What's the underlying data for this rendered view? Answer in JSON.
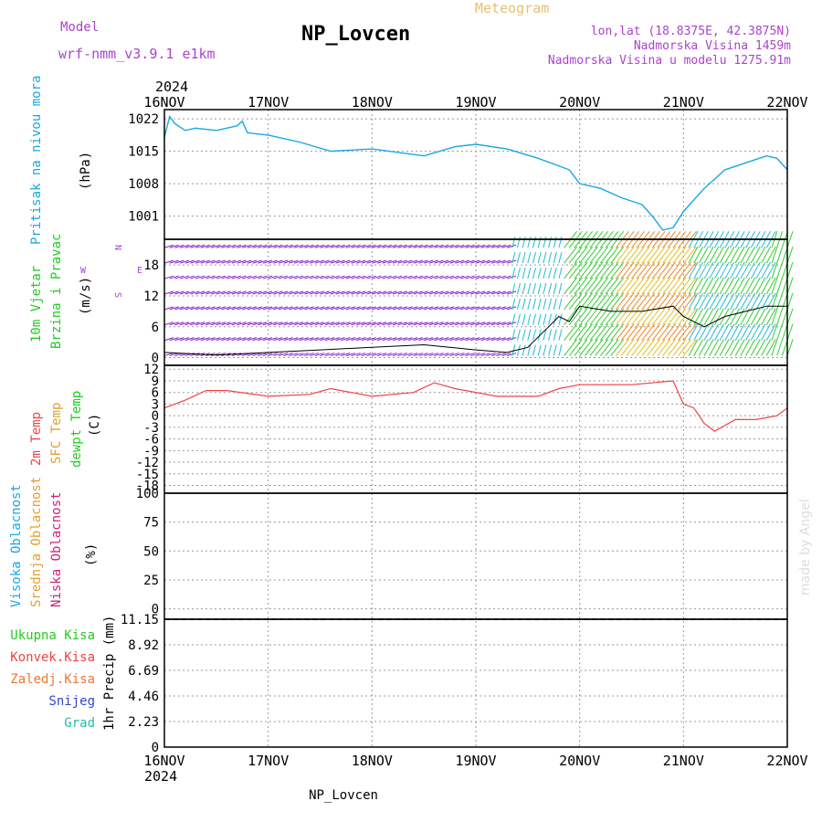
{
  "header": {
    "model_label": "Model",
    "model_value": "wrf-nmm_v3.9.1 e1km",
    "title": "NP_Lovcen",
    "subtitle": "Meteogram",
    "lonlat": "lon,lat (18.8375E, 42.3875N)",
    "elevation": "Nadmorska Visina 1459m",
    "model_elevation": "Nadmorska Visina u modelu 1275.91m",
    "year_top": "2024",
    "year_bottom": "2024",
    "footer": "NP_Lovcen",
    "watermark": "made by Angel"
  },
  "colors": {
    "pressure": "#1aa6e6",
    "temp2m": "#ee4444",
    "sfc": "#e0a030",
    "dew": "#33cc33",
    "purple": "#aa44cc",
    "magenta": "#cc2277",
    "blue": "#3355cc",
    "cyan": "#22bbaa"
  },
  "chart_data": [
    {
      "id": "pressure",
      "type": "line",
      "ylabel_colored": "Pritisak na nivou mora",
      "unit": "(hPa)",
      "yticks": [
        "1022",
        "1015",
        "1008",
        "1001"
      ],
      "x": [
        "16NOV",
        "17NOV",
        "18NOV",
        "19NOV",
        "20NOV",
        "21NOV",
        "22NOV"
      ],
      "series": [
        {
          "x": [
            0,
            0.05,
            0.1,
            0.2,
            0.3,
            0.5,
            0.7,
            0.75,
            0.8,
            1.0,
            1.3,
            1.6,
            2.0,
            2.5,
            2.8,
            3.0,
            3.3,
            3.6,
            3.9,
            4.0,
            4.2,
            4.4,
            4.6,
            4.7,
            4.8,
            4.9,
            5.0,
            5.2,
            5.4,
            5.6,
            5.8,
            5.9,
            6.0
          ],
          "values": [
            1018,
            1022.5,
            1021,
            1019.5,
            1020,
            1019.5,
            1020.5,
            1021.5,
            1019,
            1018.5,
            1017,
            1015,
            1015.5,
            1014,
            1016,
            1016.5,
            1015.5,
            1013.5,
            1011,
            1008,
            1007,
            1005,
            1003.5,
            1001,
            998,
            998.5,
            1002,
            1007,
            1011,
            1012.5,
            1014,
            1013.5,
            1011
          ]
        }
      ]
    },
    {
      "id": "wind",
      "type": "line",
      "ylabel_colored_1": "10m Vjetar",
      "ylabel_colored_2": "Brzina i Pravac",
      "unit": "(m/s)",
      "compass_N": "N",
      "compass_W": "W",
      "compass_E": "E",
      "compass_S": "S",
      "yticks": [
        "18",
        "12",
        "6",
        "0"
      ],
      "series": [
        {
          "name": "speed",
          "x": [
            0,
            0.5,
            1.0,
            1.5,
            2.0,
            2.5,
            3.0,
            3.3,
            3.5,
            3.7,
            3.8,
            3.9,
            4.0,
            4.3,
            4.6,
            4.9,
            5.0,
            5.2,
            5.4,
            5.6,
            5.8,
            6.0
          ],
          "values": [
            1,
            0.5,
            1,
            1.5,
            2,
            2.5,
            1.5,
            1,
            2,
            6,
            8,
            7,
            10,
            9,
            9,
            10,
            8,
            6,
            8,
            9,
            10,
            10
          ]
        }
      ]
    },
    {
      "id": "temperature",
      "type": "line",
      "ylabel_2m": "2m Temp",
      "ylabel_sfc": "SFC Temp",
      "ylabel_dew": "dewpt Temp",
      "unit": "(C)",
      "yticks": [
        "12",
        "9",
        "6",
        "3",
        "0",
        "-3",
        "-6",
        "-9",
        "-12",
        "-15",
        "-18"
      ],
      "series": [
        {
          "name": "2m Temp",
          "x": [
            0,
            0.2,
            0.4,
            0.6,
            1.0,
            1.4,
            1.6,
            1.8,
            2.0,
            2.4,
            2.6,
            2.8,
            3.2,
            3.6,
            3.8,
            4.0,
            4.5,
            4.9,
            5.0,
            5.1,
            5.2,
            5.3,
            5.5,
            5.7,
            5.9,
            6.0
          ],
          "values": [
            2,
            4,
            6.5,
            6.5,
            5,
            5.5,
            7,
            6,
            5,
            6,
            8.5,
            7,
            5,
            5,
            7,
            8,
            8,
            9,
            3,
            2,
            -2,
            -4,
            -1,
            -1,
            0,
            2
          ]
        }
      ]
    },
    {
      "id": "clouds",
      "type": "bar",
      "ylabel_high": "Visoka Oblacnost",
      "ylabel_mid": "Srednja Oblacnost",
      "ylabel_low": "Niska Oblacnost",
      "unit": "(%)",
      "yticks": [
        "100",
        "75",
        "50",
        "25",
        "0"
      ]
    },
    {
      "id": "precip",
      "type": "bar",
      "legend": [
        "Ukupna Kisa",
        "Konvek.Kisa",
        "Zaledj.Kisa",
        "Snijeg",
        "Grad"
      ],
      "ylabel": "1hr Precip (mm)",
      "yticks": [
        "11.15",
        "8.92",
        "6.69",
        "4.46",
        "2.23",
        "0"
      ]
    }
  ]
}
